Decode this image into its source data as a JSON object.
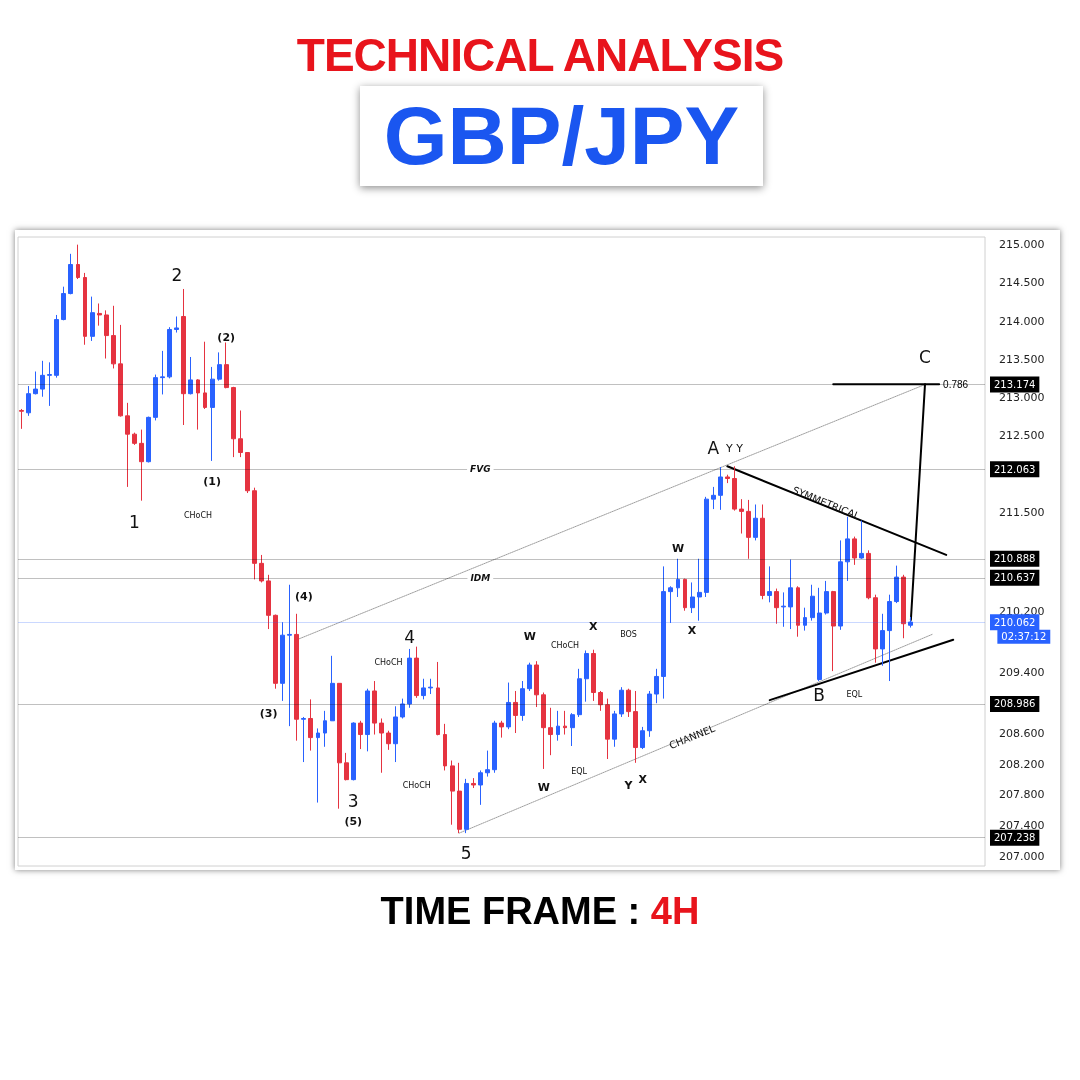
{
  "chart_data": {
    "type": "candlestick",
    "title": "TECHNICAL ANALYSIS",
    "subtitle": "GBP/JPY",
    "xlabel": "TIME FRAME : 4H",
    "tick_labels": "y",
    "categories": [
      null,
      null,
      null,
      null,
      null,
      null,
      null,
      null,
      null,
      null,
      null,
      null,
      null,
      null,
      null,
      null,
      null,
      null,
      null,
      null,
      null,
      null,
      null,
      null,
      null,
      null,
      null,
      null,
      null,
      null,
      null,
      null,
      null,
      null,
      null,
      null,
      null,
      null,
      null,
      null,
      null,
      null,
      null,
      null,
      null,
      null,
      null,
      null,
      null,
      null,
      null,
      null,
      null,
      null,
      null,
      null,
      null,
      null,
      null,
      null,
      null,
      null,
      null,
      null,
      null,
      null,
      null,
      null,
      null,
      null,
      null,
      null,
      null,
      null,
      null,
      null,
      null,
      null,
      null,
      null,
      null,
      null,
      null,
      null,
      null,
      null,
      null,
      null,
      null,
      null,
      null,
      null,
      null,
      null,
      null,
      null,
      null,
      null,
      null,
      null,
      null,
      null,
      null,
      null,
      null,
      null,
      null,
      null,
      null,
      null,
      null,
      null,
      null,
      null,
      null,
      null,
      null,
      null,
      null,
      null,
      null,
      null,
      null,
      null,
      null,
      null,
      null,
      null,
      null,
      null,
      null,
      null,
      null,
      null,
      null,
      null,
      null
    ],
    "ohlc": [
      [
        212.83,
        212.85,
        212.59,
        212.82
      ],
      [
        212.8,
        213.15,
        212.76,
        213.05
      ],
      [
        213.05,
        213.34,
        213.04,
        213.11
      ],
      [
        213.11,
        213.48,
        213.01,
        213.29
      ],
      [
        213.29,
        213.46,
        212.89,
        213.3
      ],
      [
        213.29,
        214.08,
        213.26,
        214.02
      ],
      [
        214.02,
        214.45,
        214.01,
        214.36
      ],
      [
        214.36,
        214.88,
        214.35,
        214.74
      ],
      [
        214.74,
        215.0,
        214.55,
        214.57
      ],
      [
        214.57,
        214.63,
        213.69,
        213.8
      ],
      [
        213.8,
        214.32,
        213.74,
        214.11
      ],
      [
        214.1,
        214.23,
        213.94,
        214.08
      ],
      [
        214.08,
        214.14,
        213.51,
        213.81
      ],
      [
        213.81,
        214.2,
        213.38,
        213.44
      ],
      [
        213.44,
        213.95,
        212.75,
        212.76
      ],
      [
        212.76,
        212.93,
        211.83,
        212.52
      ],
      [
        212.52,
        212.54,
        212.38,
        212.4
      ],
      [
        212.4,
        212.58,
        211.65,
        212.16
      ],
      [
        212.16,
        212.75,
        212.15,
        212.74
      ],
      [
        212.74,
        213.3,
        212.7,
        213.26
      ],
      [
        213.26,
        213.61,
        213.04,
        213.27
      ],
      [
        213.27,
        213.92,
        213.25,
        213.89
      ],
      [
        213.89,
        214.06,
        213.85,
        213.91
      ],
      [
        214.06,
        214.42,
        212.64,
        213.05
      ],
      [
        213.05,
        213.53,
        213.04,
        213.23
      ],
      [
        213.23,
        213.24,
        212.58,
        213.06
      ],
      [
        213.06,
        213.73,
        212.85,
        212.87
      ],
      [
        212.87,
        213.4,
        212.17,
        213.24
      ],
      [
        213.24,
        213.59,
        213.22,
        213.43
      ],
      [
        213.43,
        213.72,
        213.12,
        213.13
      ],
      [
        213.13,
        213.14,
        212.22,
        212.46
      ],
      [
        212.46,
        212.83,
        212.22,
        212.28
      ],
      [
        212.28,
        212.28,
        211.75,
        211.78
      ],
      [
        211.78,
        211.82,
        210.62,
        210.83
      ],
      [
        210.83,
        210.94,
        210.58,
        210.6
      ],
      [
        210.6,
        210.68,
        209.97,
        210.15
      ],
      [
        210.15,
        210.16,
        209.19,
        209.26
      ],
      [
        209.26,
        210.06,
        209.03,
        209.89
      ],
      [
        209.89,
        210.55,
        208.7,
        209.9
      ],
      [
        209.9,
        210.17,
        208.51,
        208.79
      ],
      [
        208.79,
        208.82,
        208.23,
        208.8
      ],
      [
        208.8,
        209.05,
        208.38,
        208.55
      ],
      [
        208.55,
        208.67,
        207.7,
        208.61
      ],
      [
        208.61,
        208.9,
        208.43,
        208.77
      ],
      [
        208.77,
        209.62,
        208.77,
        209.26
      ],
      [
        209.26,
        209.26,
        207.62,
        208.22
      ],
      [
        208.22,
        208.35,
        207.99,
        208.0
      ],
      [
        208.0,
        208.75,
        207.99,
        208.74
      ],
      [
        208.74,
        208.77,
        208.4,
        208.59
      ],
      [
        208.59,
        209.19,
        208.37,
        209.16
      ],
      [
        209.16,
        209.29,
        208.59,
        208.74
      ],
      [
        208.74,
        208.8,
        208.09,
        208.61
      ],
      [
        208.61,
        208.64,
        208.39,
        208.47
      ],
      [
        208.47,
        208.96,
        208.23,
        208.82
      ],
      [
        208.82,
        209.06,
        208.8,
        208.99
      ],
      [
        208.99,
        209.71,
        208.94,
        209.59
      ],
      [
        209.59,
        209.74,
        209.07,
        209.1
      ],
      [
        209.1,
        209.32,
        209.05,
        209.2
      ],
      [
        209.2,
        209.32,
        209.12,
        209.21
      ],
      [
        209.2,
        209.54,
        208.58,
        208.59
      ],
      [
        208.59,
        208.73,
        208.12,
        208.18
      ],
      [
        208.18,
        208.25,
        207.41,
        207.85
      ],
      [
        207.85,
        208.22,
        207.3,
        207.35
      ],
      [
        207.35,
        208.01,
        207.3,
        207.95
      ],
      [
        207.95,
        208.02,
        207.89,
        207.93
      ],
      [
        207.93,
        208.12,
        207.67,
        208.09
      ],
      [
        208.09,
        208.38,
        208.04,
        208.13
      ],
      [
        208.13,
        208.77,
        208.09,
        208.74
      ],
      [
        208.74,
        208.77,
        208.55,
        208.69
      ],
      [
        208.69,
        209.27,
        208.66,
        209.01
      ],
      [
        209.01,
        209.16,
        208.61,
        208.84
      ],
      [
        208.84,
        209.29,
        208.77,
        209.19
      ],
      [
        209.19,
        209.53,
        209.16,
        209.5
      ],
      [
        209.5,
        209.55,
        208.95,
        209.11
      ],
      [
        209.11,
        209.14,
        208.14,
        208.68
      ],
      [
        208.68,
        208.94,
        208.32,
        208.59
      ],
      [
        208.59,
        208.9,
        208.51,
        208.7
      ],
      [
        208.7,
        208.9,
        208.59,
        208.68
      ],
      [
        208.68,
        208.87,
        208.44,
        208.85
      ],
      [
        208.85,
        209.45,
        208.82,
        209.32
      ],
      [
        209.32,
        209.69,
        209.02,
        209.65
      ],
      [
        209.65,
        209.7,
        209.03,
        209.14
      ],
      [
        209.14,
        209.16,
        208.9,
        208.98
      ],
      [
        208.98,
        209.06,
        208.27,
        208.53
      ],
      [
        208.53,
        208.9,
        208.43,
        208.86
      ],
      [
        208.86,
        209.21,
        208.82,
        209.17
      ],
      [
        209.17,
        209.19,
        208.82,
        208.89
      ],
      [
        208.89,
        209.16,
        208.22,
        208.42
      ],
      [
        208.42,
        208.69,
        208.4,
        208.64
      ],
      [
        208.64,
        209.16,
        208.56,
        209.12
      ],
      [
        209.12,
        209.45,
        209.0,
        209.35
      ],
      [
        209.35,
        210.79,
        209.06,
        210.46
      ],
      [
        210.46,
        210.53,
        210.05,
        210.51
      ],
      [
        210.51,
        210.89,
        210.39,
        210.62
      ],
      [
        210.62,
        210.63,
        210.21,
        210.25
      ],
      [
        210.25,
        210.58,
        210.18,
        210.39
      ],
      [
        210.39,
        210.89,
        210.08,
        210.45
      ],
      [
        210.45,
        211.7,
        210.39,
        211.67
      ],
      [
        211.67,
        211.83,
        211.54,
        211.72
      ],
      [
        211.72,
        212.09,
        211.53,
        211.96
      ],
      [
        211.96,
        211.99,
        211.88,
        211.94
      ],
      [
        211.94,
        212.1,
        211.52,
        211.54
      ],
      [
        211.54,
        211.67,
        211.22,
        211.51
      ],
      [
        211.51,
        211.66,
        210.89,
        211.17
      ],
      [
        211.17,
        211.6,
        211.13,
        211.42
      ],
      [
        211.42,
        211.6,
        210.36,
        210.41
      ],
      [
        210.41,
        210.79,
        210.32,
        210.46
      ],
      [
        210.46,
        210.5,
        210.04,
        210.25
      ],
      [
        210.26,
        210.45,
        210.0,
        210.27
      ],
      [
        210.26,
        210.88,
        209.97,
        210.51
      ],
      [
        210.51,
        210.53,
        209.87,
        210.02
      ],
      [
        210.02,
        210.25,
        209.95,
        210.12
      ],
      [
        210.12,
        210.55,
        210.08,
        210.4
      ],
      [
        209.31,
        210.51,
        209.29,
        210.18
      ],
      [
        210.18,
        210.6,
        210.16,
        210.46
      ],
      [
        210.46,
        210.47,
        209.42,
        210.01
      ],
      [
        210.01,
        211.13,
        209.96,
        210.85
      ],
      [
        210.85,
        211.44,
        210.6,
        211.15
      ],
      [
        211.15,
        211.18,
        210.81,
        210.9
      ],
      [
        210.9,
        211.39,
        210.89,
        210.96
      ],
      [
        210.96,
        211.0,
        210.36,
        210.38
      ],
      [
        210.38,
        210.42,
        209.53,
        209.71
      ],
      [
        209.71,
        210.17,
        209.49,
        209.95
      ],
      [
        209.95,
        210.42,
        209.29,
        210.33
      ],
      [
        210.33,
        210.8,
        210.31,
        210.65
      ],
      [
        210.65,
        210.68,
        209.85,
        210.04
      ],
      [
        210.02,
        210.13,
        209.99,
        210.062
      ],
      null,
      null,
      null,
      null,
      null,
      null,
      null,
      null,
      null,
      null
    ],
    "colors": [
      "#e53340",
      "#2962ff",
      "#2962ff",
      "#2962ff",
      "#2962ff",
      "#2962ff",
      "#2962ff",
      "#2962ff",
      "#e53340",
      "#e53340",
      "#2962ff",
      "#e53340",
      "#e53340",
      "#e53340",
      "#e53340",
      "#e53340",
      "#e53340",
      "#e53340",
      "#2962ff",
      "#2962ff",
      "#2962ff",
      "#2962ff",
      "#2962ff",
      "#e53340",
      "#2962ff",
      "#e53340",
      "#e53340",
      "#2962ff",
      "#2962ff",
      "#e53340",
      "#e53340",
      "#e53340",
      "#e53340",
      "#e53340",
      "#e53340",
      "#e53340",
      "#e53340",
      "#2962ff",
      "#2962ff",
      "#e53340",
      "#2962ff",
      "#e53340",
      "#2962ff",
      "#2962ff",
      "#2962ff",
      "#e53340",
      "#e53340",
      "#2962ff",
      "#e53340",
      "#2962ff",
      "#e53340",
      "#e53340",
      "#e53340",
      "#2962ff",
      "#2962ff",
      "#2962ff",
      "#e53340",
      "#2962ff",
      "#2962ff",
      "#e53340",
      "#e53340",
      "#e53340",
      "#e53340",
      "#2962ff",
      "#e53340",
      "#2962ff",
      "#2962ff",
      "#2962ff",
      "#e53340",
      "#2962ff",
      "#e53340",
      "#2962ff",
      "#2962ff",
      "#e53340",
      "#e53340",
      "#e53340",
      "#2962ff",
      "#e53340",
      "#2962ff",
      "#2962ff",
      "#2962ff",
      "#e53340",
      "#e53340",
      "#e53340",
      "#2962ff",
      "#2962ff",
      "#e53340",
      "#e53340",
      "#2962ff",
      "#2962ff",
      "#2962ff",
      "#2962ff",
      "#2962ff",
      "#2962ff",
      "#e53340",
      "#2962ff",
      "#2962ff",
      "#2962ff",
      "#2962ff",
      "#2962ff",
      "#e53340",
      "#e53340",
      "#e53340",
      "#e53340",
      "#2962ff",
      "#e53340",
      "#2962ff",
      "#e53340",
      "#2962ff",
      "#2962ff",
      "#e53340",
      "#2962ff",
      "#2962ff",
      "#2962ff",
      "#2962ff",
      "#e53340",
      "#2962ff",
      "#2962ff",
      "#e53340",
      "#2962ff",
      "#e53340",
      "#e53340",
      "#2962ff",
      "#2962ff",
      "#2962ff",
      "#e53340",
      "#2962ff",
      null,
      null,
      null,
      null,
      null,
      null,
      null,
      null,
      null,
      null
    ],
    "series": [
      {
        "type": "line",
        "color": "#9e9e9e",
        "line_style": "dotted",
        "values": [
          null,
          null,
          null,
          null,
          null,
          null,
          null,
          null,
          null,
          null,
          null,
          null,
          null,
          null,
          null,
          null,
          null,
          null,
          null,
          null,
          null,
          null,
          null,
          null,
          null,
          null,
          null,
          null,
          null,
          null,
          null,
          null,
          null,
          null,
          null,
          null,
          null,
          null,
          null,
          209.83,
          null,
          null,
          null,
          null,
          null,
          null,
          null,
          null,
          null,
          null,
          null,
          null,
          null,
          null,
          null,
          null,
          null,
          null,
          null,
          null,
          null,
          null,
          null,
          null,
          null,
          null,
          null,
          null,
          null,
          null,
          null,
          null,
          null,
          null,
          null,
          null,
          null,
          null,
          null,
          null,
          null,
          null,
          null,
          null,
          null,
          null,
          null,
          null,
          null,
          null,
          null,
          null,
          null,
          null,
          null,
          null,
          null,
          null,
          null,
          null,
          null,
          null,
          null,
          null,
          null,
          null,
          null,
          null,
          null,
          null,
          null,
          null,
          null,
          null,
          null,
          null,
          null,
          null,
          null,
          null,
          null,
          null,
          null,
          null,
          null,
          null,
          null,
          null,
          213.17,
          null,
          null,
          null,
          null,
          null,
          null,
          null,
          null
        ]
      },
      {
        "type": "line",
        "color": "#9e9e9e",
        "line_style": "dotted",
        "values": [
          null,
          null,
          null,
          null,
          null,
          null,
          null,
          null,
          null,
          null,
          null,
          null,
          null,
          null,
          null,
          null,
          null,
          null,
          null,
          null,
          null,
          null,
          null,
          null,
          null,
          null,
          null,
          null,
          null,
          null,
          null,
          null,
          null,
          null,
          null,
          null,
          null,
          null,
          null,
          null,
          null,
          null,
          null,
          null,
          null,
          null,
          null,
          null,
          null,
          null,
          null,
          null,
          null,
          null,
          null,
          null,
          null,
          null,
          null,
          null,
          null,
          null,
          207.3,
          null,
          null,
          null,
          null,
          null,
          null,
          null,
          null,
          null,
          null,
          null,
          null,
          null,
          null,
          null,
          null,
          null,
          null,
          null,
          null,
          null,
          null,
          null,
          null,
          null,
          null,
          null,
          null,
          null,
          null,
          null,
          null,
          null,
          null,
          null,
          null,
          null,
          null,
          null,
          null,
          null,
          null,
          null,
          null,
          null,
          null,
          null,
          null,
          null,
          null,
          null,
          null,
          null,
          null,
          null,
          null,
          null,
          null,
          null,
          null,
          null,
          null,
          null,
          null,
          null,
          null,
          209.9,
          null,
          null,
          null,
          null,
          null,
          null,
          null
        ]
      },
      {
        "type": "line",
        "color": "#000000",
        "line_style": "solid",
        "values": [
          null,
          null,
          null,
          null,
          null,
          null,
          null,
          null,
          null,
          null,
          null,
          null,
          null,
          null,
          null,
          null,
          null,
          null,
          null,
          null,
          null,
          null,
          null,
          null,
          null,
          null,
          null,
          null,
          null,
          null,
          null,
          null,
          null,
          null,
          null,
          null,
          null,
          null,
          null,
          null,
          null,
          null,
          null,
          null,
          null,
          null,
          null,
          null,
          null,
          null,
          null,
          null,
          null,
          null,
          null,
          null,
          null,
          null,
          null,
          null,
          null,
          null,
          null,
          null,
          null,
          null,
          null,
          null,
          null,
          null,
          null,
          null,
          null,
          null,
          null,
          null,
          null,
          null,
          null,
          null,
          null,
          null,
          null,
          null,
          null,
          null,
          null,
          null,
          null,
          null,
          null,
          null,
          null,
          null,
          null,
          null,
          null,
          null,
          null,
          null,
          212.1,
          null,
          null,
          null,
          null,
          null,
          null,
          null,
          null,
          null,
          null,
          null,
          null,
          null,
          null,
          null,
          null,
          null,
          null,
          null,
          null,
          null,
          null,
          null,
          null,
          null,
          null,
          null,
          null,
          null,
          null,
          210.94,
          null,
          null,
          null,
          null,
          null
        ]
      },
      {
        "type": "line",
        "color": "#000000",
        "line_style": "solid",
        "values": [
          null,
          null,
          null,
          null,
          null,
          null,
          null,
          null,
          null,
          null,
          null,
          null,
          null,
          null,
          null,
          null,
          null,
          null,
          null,
          null,
          null,
          null,
          null,
          null,
          null,
          null,
          null,
          null,
          null,
          null,
          null,
          null,
          null,
          null,
          null,
          null,
          null,
          null,
          null,
          null,
          null,
          null,
          null,
          null,
          null,
          null,
          null,
          null,
          null,
          null,
          null,
          null,
          null,
          null,
          null,
          null,
          null,
          null,
          null,
          null,
          null,
          null,
          null,
          null,
          null,
          null,
          null,
          null,
          null,
          null,
          null,
          null,
          null,
          null,
          null,
          null,
          null,
          null,
          null,
          null,
          null,
          null,
          null,
          null,
          null,
          null,
          null,
          null,
          null,
          null,
          null,
          null,
          null,
          null,
          null,
          null,
          null,
          null,
          null,
          null,
          null,
          null,
          null,
          null,
          null,
          null,
          209.04,
          null,
          null,
          null,
          null,
          null,
          null,
          null,
          null,
          null,
          null,
          null,
          null,
          null,
          null,
          null,
          null,
          null,
          null,
          null,
          null,
          null,
          null,
          null,
          null,
          null,
          209.83,
          null,
          null,
          null,
          null
        ]
      },
      {
        "type": "line",
        "color": "#000000",
        "line_style": "solid",
        "values": [
          null,
          null,
          null,
          null,
          null,
          null,
          null,
          null,
          null,
          null,
          null,
          null,
          null,
          null,
          null,
          null,
          null,
          null,
          null,
          null,
          null,
          null,
          null,
          null,
          null,
          null,
          null,
          null,
          null,
          null,
          null,
          null,
          null,
          null,
          null,
          null,
          null,
          null,
          null,
          null,
          null,
          null,
          null,
          null,
          null,
          null,
          null,
          null,
          null,
          null,
          null,
          null,
          null,
          null,
          null,
          null,
          null,
          null,
          null,
          null,
          null,
          null,
          null,
          null,
          null,
          null,
          null,
          null,
          null,
          null,
          null,
          null,
          null,
          null,
          null,
          null,
          null,
          null,
          null,
          null,
          null,
          null,
          null,
          null,
          null,
          null,
          null,
          null,
          null,
          null,
          null,
          null,
          null,
          null,
          null,
          null,
          null,
          null,
          null,
          null,
          null,
          null,
          null,
          null,
          null,
          null,
          null,
          null,
          null,
          null,
          null,
          null,
          null,
          null,
          null,
          null,
          null,
          null,
          null,
          null,
          null,
          null,
          null,
          null,
          null,
          null,
          210.09,
          null,
          213.174,
          null,
          null,
          null,
          null,
          null,
          null,
          null,
          null
        ]
      },
      {
        "type": "line",
        "name": "0.786",
        "color": "#000000",
        "line_style": "solid",
        "values": [
          null,
          null,
          null,
          null,
          null,
          null,
          null,
          null,
          null,
          null,
          null,
          null,
          null,
          null,
          null,
          null,
          null,
          null,
          null,
          null,
          null,
          null,
          null,
          null,
          null,
          null,
          null,
          null,
          null,
          null,
          null,
          null,
          null,
          null,
          null,
          null,
          null,
          null,
          null,
          null,
          null,
          null,
          null,
          null,
          null,
          null,
          null,
          null,
          null,
          null,
          null,
          null,
          null,
          null,
          null,
          null,
          null,
          null,
          null,
          null,
          null,
          null,
          null,
          null,
          null,
          null,
          null,
          null,
          null,
          null,
          null,
          null,
          null,
          null,
          null,
          null,
          null,
          null,
          null,
          null,
          null,
          null,
          null,
          null,
          null,
          null,
          null,
          null,
          null,
          null,
          null,
          null,
          null,
          null,
          null,
          null,
          null,
          null,
          null,
          null,
          null,
          null,
          null,
          null,
          null,
          null,
          null,
          null,
          null,
          null,
          null,
          null,
          null,
          null,
          null,
          213.174,
          null,
          null,
          null,
          null,
          null,
          null,
          null,
          null,
          null,
          null,
          null,
          null,
          null,
          null,
          213.174,
          null,
          null,
          null,
          null,
          null,
          null
        ]
      }
    ],
    "ref_lines": [
      {
        "axis": "y",
        "value": 212.063,
        "label": "212.063",
        "line_style": "dotted",
        "color": "#000000"
      },
      {
        "axis": "y",
        "value": 210.637,
        "label": "210.637",
        "line_style": "dotted",
        "color": "#000000"
      },
      {
        "axis": "y",
        "value": 213.174,
        "label": "213.174",
        "line_style": "dotted",
        "color": "#000000"
      },
      {
        "axis": "y",
        "value": 210.888,
        "label": "210.888",
        "line_style": "dotted",
        "color": "#000000"
      },
      {
        "axis": "y",
        "value": 208.986,
        "label": "208.986",
        "line_style": "dotted",
        "color": "#000000"
      },
      {
        "axis": "y",
        "value": 207.238,
        "label": "207.238",
        "line_style": "dotted",
        "color": "#000000"
      },
      {
        "axis": "y",
        "value": 210.062,
        "label": "210.062",
        "line_style": "dotted",
        "color": "#2962ff"
      }
    ],
    "annotations": [
      {
        "text": "FVG",
        "y": 212.063
      },
      {
        "text": "IDM",
        "y": 210.637
      },
      "02:37:12",
      "1",
      "2",
      "(1)",
      "(2)",
      "CHoCH",
      "(3)",
      "(4)",
      "3",
      "(5)",
      "4",
      "CHoCH",
      "CHoCH",
      "5",
      "W",
      "CHoCH",
      "X",
      "BOS",
      "W",
      "EQL",
      "Y",
      "X",
      "CHANNEL",
      "W",
      "X",
      "A",
      "Y Y",
      "SYMMETRICAL",
      "B",
      "EQL",
      "C"
    ],
    "ylim": [
      206.87,
      215.1
    ],
    "yticks": [
      {
        "value": 207,
        "label": "207.000"
      },
      {
        "value": 207.4,
        "label": "207.400"
      },
      {
        "value": 207.8,
        "label": "207.800"
      },
      {
        "value": 208.2,
        "label": "208.200"
      },
      {
        "value": 208.6,
        "label": "208.600"
      },
      {
        "value": 209.4,
        "label": "209.400"
      },
      {
        "value": 210.2,
        "label": "210.200"
      },
      {
        "value": 211.5,
        "label": "211.500"
      },
      {
        "value": 212.5,
        "label": "212.500"
      },
      {
        "value": 213,
        "label": "213.000"
      },
      {
        "value": 213.5,
        "label": "213.500"
      },
      {
        "value": 214,
        "label": "214.000"
      },
      {
        "value": 214.5,
        "label": "214.500"
      },
      {
        "value": 215,
        "label": "215.000"
      }
    ]
  }
}
